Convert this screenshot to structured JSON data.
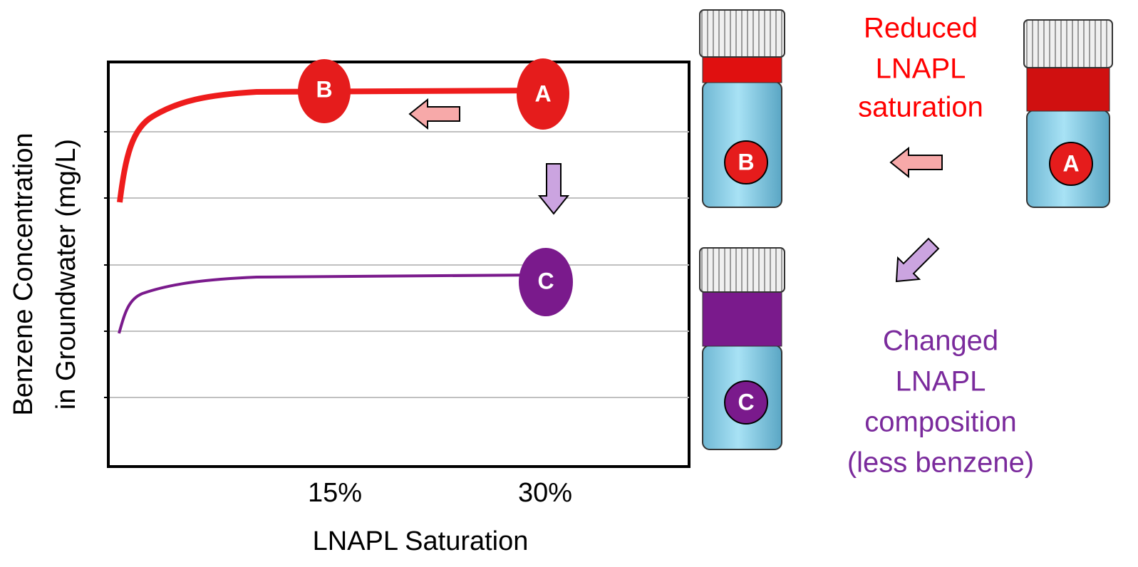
{
  "chart": {
    "y_axis_title": [
      "Benzene Concentration",
      "in Groundwater  (mg/L)"
    ],
    "x_axis_title": "LNAPL Saturation",
    "x_tick_labels": [
      "15%",
      "30%"
    ],
    "points": [
      "B",
      "A",
      "C"
    ]
  },
  "vials": [
    "B",
    "C",
    "A"
  ],
  "annotations": {
    "reduced": [
      "Reduced",
      "LNAPL",
      "saturation"
    ],
    "changed": [
      "Changed",
      "LNAPL",
      "composition",
      "(less benzene)"
    ]
  }
}
